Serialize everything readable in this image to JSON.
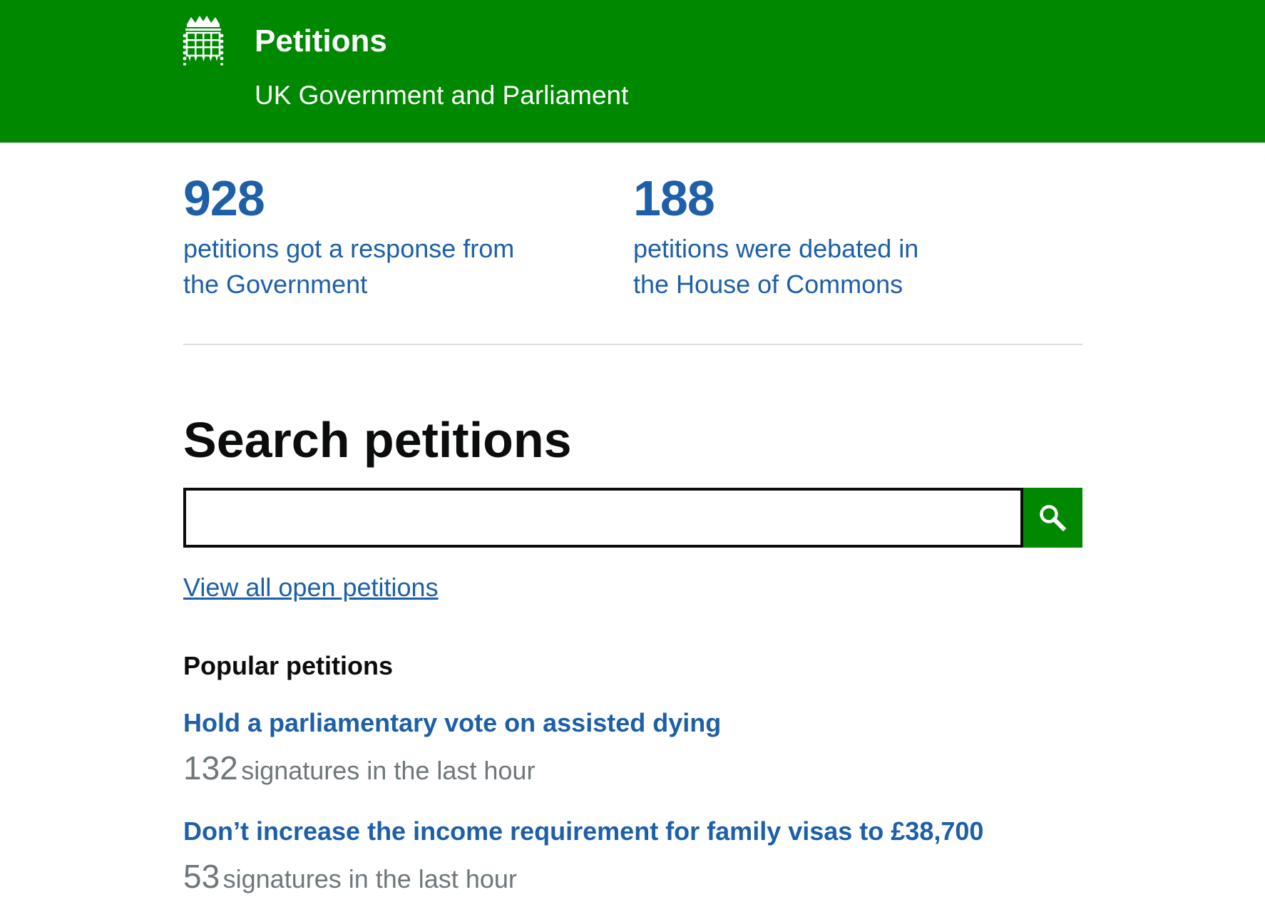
{
  "header": {
    "title": "Petitions",
    "subtitle": "UK Government and Parliament",
    "logo_icon": "portcullis-crest-icon",
    "background_color": "#008800"
  },
  "stats": [
    {
      "number": "928",
      "text": "petitions got a response from the Government"
    },
    {
      "number": "188",
      "text": "petitions were debated in the House of Commons"
    }
  ],
  "search": {
    "heading": "Search petitions",
    "input_value": "",
    "button_icon": "search-icon"
  },
  "view_all_link": "View all open petitions",
  "popular": {
    "heading": "Popular petitions",
    "items": [
      {
        "title": "Hold a parliamentary vote on assisted dying",
        "count": "132",
        "count_label": "signatures in the last hour"
      },
      {
        "title": "Don’t increase the income requirement for family visas to £38,700",
        "count": "53",
        "count_label": "signatures in the last hour"
      }
    ]
  },
  "colors": {
    "brand_green": "#008800",
    "link_blue": "#1d5fa8",
    "text_dark": "#0b0c0c",
    "text_grey": "#6f777b"
  }
}
